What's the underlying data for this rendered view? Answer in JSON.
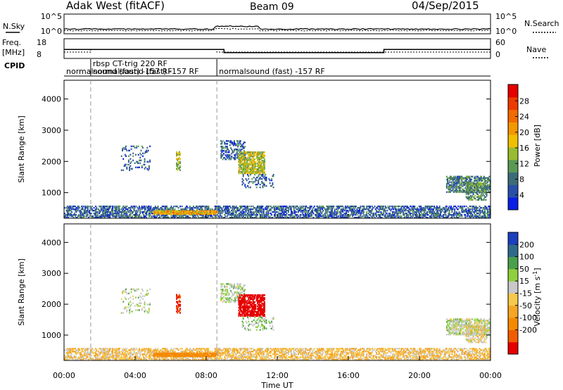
{
  "header": {
    "radar": "Adak West (fitACF)",
    "beam": "Beam 09",
    "date": "04/Sep/2015"
  },
  "noise_panel": {
    "left_label": "N.Sky",
    "left_ticks": [
      "10^5",
      "10^0"
    ],
    "right_ticks": [
      "10^5",
      "10^0"
    ],
    "right_label": "N.Search"
  },
  "freq_panel": {
    "left_label_1": "Freq.",
    "left_label_2": "[MHz]",
    "left_ticks": [
      "18",
      "8"
    ],
    "right_ticks": [
      "60",
      "0"
    ],
    "right_label": "Nave",
    "cpid_label": "CPID"
  },
  "cpid_segments": [
    {
      "from_hour": 0.0,
      "to_hour": 1.5,
      "line1": "",
      "line2": "normalsound (fast) -157 RF"
    },
    {
      "from_hour": 1.5,
      "to_hour": 8.6,
      "line1": "rbsp CT-trig 220 RF",
      "line2": "normalsound (fast) -157 RF"
    },
    {
      "from_hour": 8.6,
      "to_hour": 24.0,
      "line1": "",
      "line2": "normalsound (fast) -157 RF"
    }
  ],
  "axis": {
    "x_ticks": [
      "00:00",
      "04:00",
      "08:00",
      "12:00",
      "16:00",
      "20:00",
      "00:00"
    ],
    "x_label": "Time UT",
    "y_label": "Slant Range [km]",
    "y_ticks": [
      "1000",
      "2000",
      "3000",
      "4000"
    ]
  },
  "power_colorbar": {
    "label": "Power [dB]",
    "ticks": [
      "4",
      "8",
      "12",
      "16",
      "20",
      "24",
      "28"
    ],
    "colors": [
      "#0a1ee6",
      "#2a4fa8",
      "#3d6b78",
      "#5a9a55",
      "#98bc2e",
      "#f0c000",
      "#f39800",
      "#f26a00",
      "#ee3a00",
      "#e60000"
    ]
  },
  "velocity_colorbar": {
    "label_main": "Velocity [m s",
    "label_sup": "-1",
    "label_end": "]",
    "ticks": [
      "200",
      "100",
      "50",
      "15",
      "-15",
      "-50",
      "-100",
      "-200"
    ],
    "colors": [
      "#1a3fbf",
      "#2e6a8a",
      "#4aa04a",
      "#8fd03c",
      "#c8c8c8",
      "#f7c94a",
      "#f5a623",
      "#f58a00",
      "#f25c00",
      "#e60000"
    ]
  },
  "chart_data": {
    "type": "heatmap",
    "title": "Adak West (fitACF)  Beam 09  04/Sep/2015",
    "xlabel": "Time UT",
    "ylabel": "Slant Range [km]",
    "xlim_hours": [
      0,
      24
    ],
    "ylim_km": [
      180,
      4600
    ],
    "frequency_mhz": [
      {
        "from_hour": 0.0,
        "to_hour": 9.0,
        "value": 12.5
      },
      {
        "from_hour": 9.0,
        "to_hour": 18.0,
        "value": 10.8
      },
      {
        "from_hour": 18.0,
        "to_hour": 24.0,
        "value": 12.5
      }
    ],
    "echo_regions": [
      {
        "hours": [
          0.0,
          24.0
        ],
        "range_km": [
          180,
          550
        ],
        "power_db": 6,
        "velocity_ms": -30,
        "density": 0.55
      },
      {
        "hours": [
          5.0,
          8.6
        ],
        "range_km": [
          300,
          420
        ],
        "power_db": 18,
        "velocity_ms": -120,
        "density": 0.9
      },
      {
        "hours": [
          3.2,
          4.8
        ],
        "range_km": [
          1700,
          2500
        ],
        "power_db": 6,
        "velocity_ms": 10,
        "density": 0.15
      },
      {
        "hours": [
          6.3,
          6.5
        ],
        "range_km": [
          1700,
          2300
        ],
        "power_db": 14,
        "velocity_ms": -180,
        "density": 0.5
      },
      {
        "hours": [
          8.8,
          10.2
        ],
        "range_km": [
          2050,
          2650
        ],
        "power_db": 6,
        "velocity_ms": 10,
        "density": 0.4
      },
      {
        "hours": [
          9.8,
          11.3
        ],
        "range_km": [
          1600,
          2300
        ],
        "power_db": 14,
        "velocity_ms": -220,
        "density": 0.75
      },
      {
        "hours": [
          10.0,
          11.8
        ],
        "range_km": [
          1150,
          1600
        ],
        "power_db": 6,
        "velocity_ms": 20,
        "density": 0.2
      },
      {
        "hours": [
          21.5,
          24.0
        ],
        "range_km": [
          1000,
          1500
        ],
        "power_db": 8,
        "velocity_ms": 5,
        "density": 0.6
      },
      {
        "hours": [
          22.6,
          23.8
        ],
        "range_km": [
          750,
          1300
        ],
        "power_db": 10,
        "velocity_ms": -10,
        "density": 0.55
      }
    ]
  }
}
